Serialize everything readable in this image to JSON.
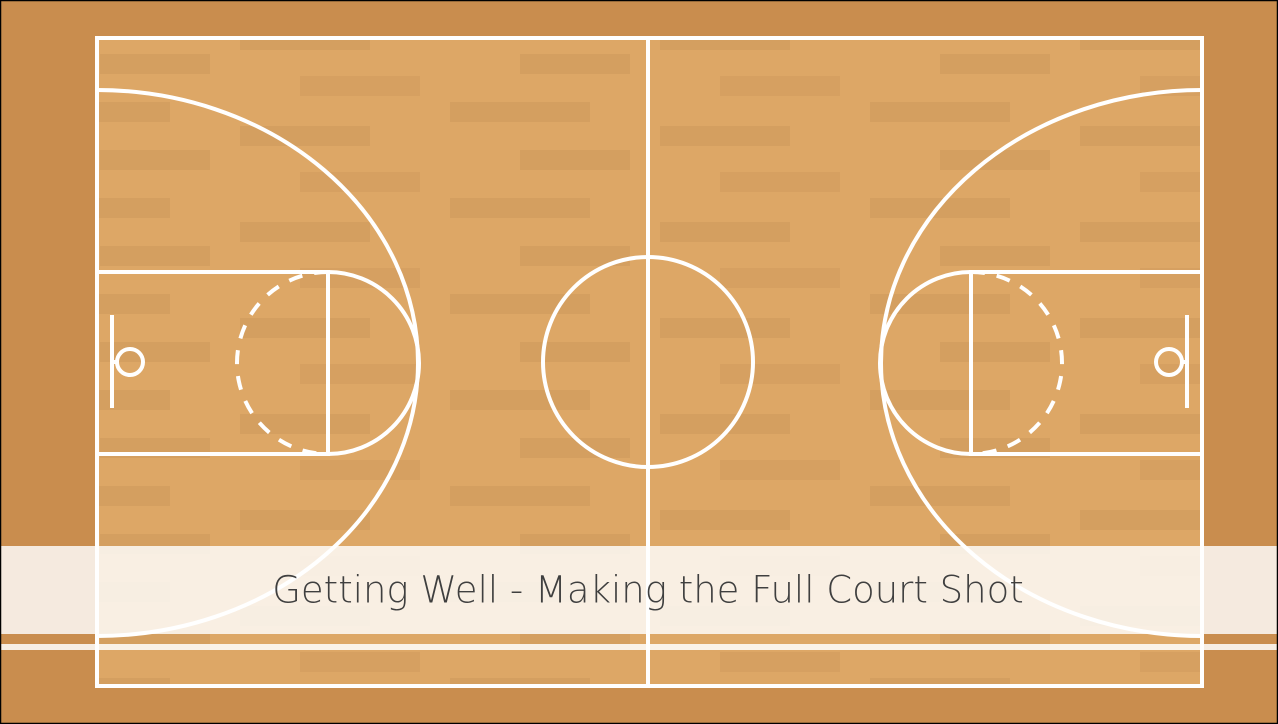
{
  "title": "Getting Well - Making the Full Court Shot"
}
